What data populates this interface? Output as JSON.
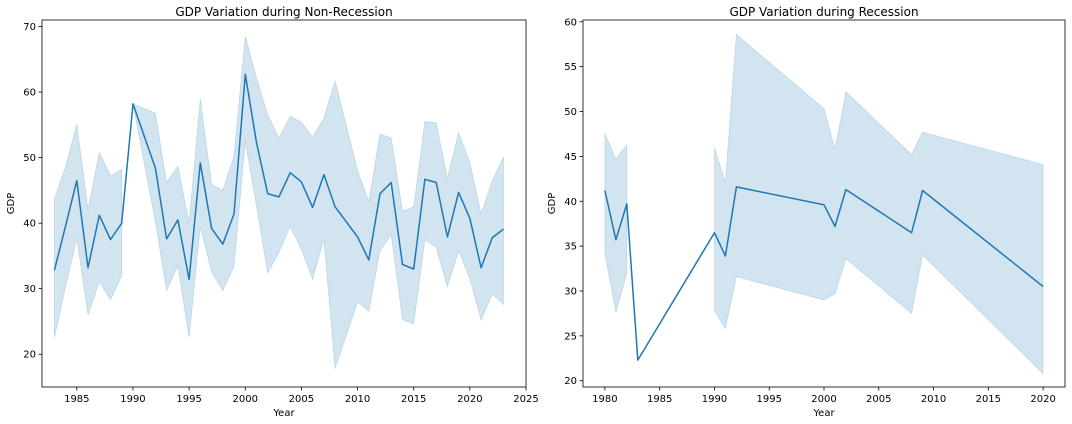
{
  "chart_data": [
    {
      "type": "line",
      "title": "GDP Variation during Non-Recession",
      "xlabel": "Year",
      "ylabel": "GDP",
      "xlim": [
        1981.9,
        2025
      ],
      "ylim": [
        15,
        71
      ],
      "xticks": [
        1985,
        1990,
        1995,
        2000,
        2005,
        2010,
        2015,
        2020,
        2025
      ],
      "yticks": [
        20,
        30,
        40,
        50,
        60,
        70
      ],
      "grid": false,
      "series": [
        {
          "color": "#1f77b4",
          "band_color": "#1f77b4",
          "segments": [
            {
              "x": [
                1983,
                1984,
                1985,
                1986,
                1987,
                1988,
                1989
              ],
              "y": [
                32.8,
                39.6,
                46.5,
                33.2,
                41.2,
                37.5,
                40.0
              ],
              "lower": [
                22.5,
                30.3,
                37.7,
                26.0,
                31.1,
                28.3,
                32.0
              ],
              "upper": [
                43.7,
                48.6,
                55.1,
                42.1,
                50.8,
                47.2,
                48.2
              ]
            },
            {
              "x": [
                1990,
                1992,
                1993,
                1994,
                1995,
                1996,
                1997,
                1998,
                1999,
                2000,
                2001,
                2002,
                2003,
                2004,
                2005,
                2006,
                2007,
                2008,
                2010,
                2011,
                2012,
                2013,
                2014,
                2015,
                2016,
                2017,
                2018,
                2019,
                2020,
                2021,
                2022,
                2023
              ],
              "y": [
                58.2,
                48.4,
                37.6,
                40.5,
                31.4,
                49.2,
                39.2,
                36.8,
                41.4,
                62.7,
                52.3,
                44.5,
                44.0,
                47.7,
                46.3,
                42.4,
                47.4,
                42.5,
                37.9,
                34.4,
                44.5,
                46.2,
                33.7,
                33.0,
                46.7,
                46.2,
                37.9,
                44.7,
                40.7,
                33.2,
                37.8,
                39.1
              ],
              "lower": [
                58.2,
                40.2,
                29.7,
                33.5,
                22.6,
                39.5,
                32.6,
                29.7,
                33.4,
                52.5,
                42.6,
                32.4,
                35.5,
                39.5,
                36.0,
                31.4,
                37.6,
                17.8,
                28.0,
                26.6,
                35.8,
                38.2,
                25.3,
                24.6,
                37.5,
                36.3,
                30.3,
                35.8,
                31.5,
                25.2,
                29.2,
                27.6
              ],
              "upper": [
                58.2,
                56.8,
                46.2,
                48.7,
                40.0,
                59.0,
                45.9,
                45.0,
                50.3,
                68.5,
                62.2,
                56.5,
                53.0,
                56.3,
                55.4,
                53.1,
                56.0,
                61.7,
                48.0,
                43.3,
                53.6,
                53.0,
                41.8,
                42.5,
                55.5,
                55.3,
                46.8,
                53.8,
                49.2,
                41.4,
                46.5,
                50.1
              ]
            }
          ]
        }
      ]
    },
    {
      "type": "line",
      "title": "GDP Variation during Recession",
      "xlabel": "Year",
      "ylabel": "GDP",
      "xlim": [
        1978,
        2022
      ],
      "ylim": [
        19.3,
        60.2
      ],
      "xticks": [
        1980,
        1985,
        1990,
        1995,
        2000,
        2005,
        2010,
        2015,
        2020
      ],
      "yticks": [
        20,
        25,
        30,
        35,
        40,
        45,
        50,
        55,
        60
      ],
      "grid": false,
      "series": [
        {
          "color": "#1f77b4",
          "band_color": "#1f77b4",
          "segments": [
            {
              "x": [
                1980,
                1981,
                1982
              ],
              "y": [
                41.2,
                35.7,
                39.7
              ],
              "lower": [
                34.2,
                27.6,
                32.0
              ],
              "upper": [
                47.5,
                44.7,
                46.3
              ]
            },
            {
              "x": [
                1990,
                1991,
                1992,
                2000,
                2001,
                2002,
                2008,
                2009,
                2020
              ],
              "y": [
                36.5,
                33.9,
                41.6,
                39.6,
                37.2,
                41.3,
                36.5,
                41.2,
                30.5
              ],
              "lower": [
                27.8,
                25.8,
                31.6,
                29.0,
                29.7,
                33.6,
                27.5,
                34.0,
                20.8
              ],
              "upper": [
                45.9,
                42.1,
                58.6,
                50.3,
                45.8,
                52.2,
                45.2,
                47.7,
                44.1
              ]
            }
          ],
          "line": {
            "x": [
              1980,
              1981,
              1982,
              1983,
              1990,
              1991,
              1992,
              2000,
              2001,
              2002,
              2008,
              2009,
              2020
            ],
            "y": [
              41.2,
              35.7,
              39.7,
              22.3,
              36.5,
              33.9,
              41.6,
              39.6,
              37.2,
              41.3,
              36.5,
              41.2,
              30.5
            ]
          }
        }
      ]
    }
  ]
}
